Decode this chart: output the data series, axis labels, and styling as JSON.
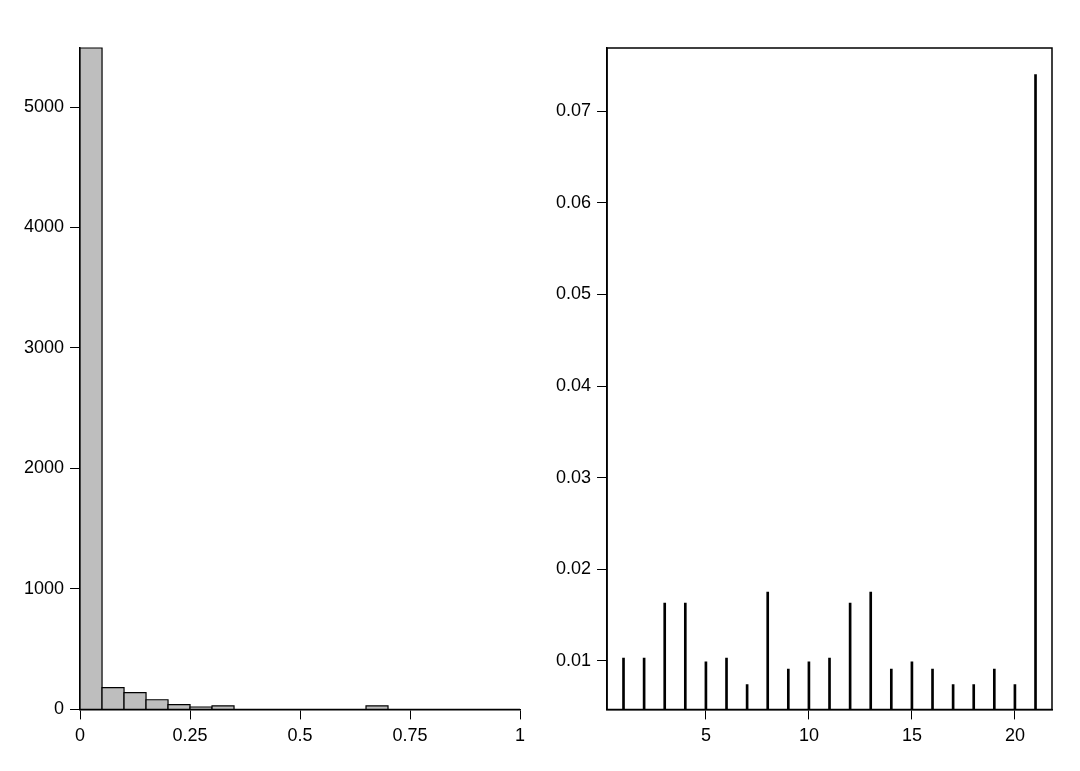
{
  "chart_data": [
    {
      "type": "histogram",
      "bins": [
        0,
        0.05,
        0.1,
        0.15,
        0.2,
        0.25,
        0.3,
        0.35,
        0.4,
        0.45,
        0.5,
        0.55,
        0.6,
        0.65,
        0.7,
        0.75,
        0.8,
        0.85,
        0.9,
        0.95,
        1
      ],
      "values": [
        5490,
        180,
        140,
        80,
        40,
        20,
        30,
        0,
        0,
        0,
        0,
        0,
        0,
        30,
        0,
        0,
        0,
        0,
        0,
        0
      ],
      "color": "#bebebe",
      "xlim": [
        0,
        1
      ],
      "xticks": [
        0,
        0.25,
        0.5,
        0.75,
        1
      ],
      "ylim": [
        0,
        5490
      ],
      "yticks": [
        0,
        1000,
        2000,
        3000,
        4000,
        5000
      ],
      "grid": false
    },
    {
      "type": "bar",
      "x": [
        1,
        2,
        3,
        4,
        5,
        6,
        7,
        8,
        9,
        10,
        11,
        12,
        13,
        14,
        15,
        16,
        17,
        18,
        19,
        20,
        21
      ],
      "values": [
        0.0103,
        0.0103,
        0.0163,
        0.0163,
        0.0099,
        0.0103,
        0.0074,
        0.0175,
        0.0091,
        0.0099,
        0.0103,
        0.0163,
        0.0175,
        0.0091,
        0.0099,
        0.0091,
        0.0074,
        0.0074,
        0.0091,
        0.0074,
        0.074
      ],
      "color": "#000000",
      "xlim": [
        0.2,
        21.8
      ],
      "xticks": [
        5,
        10,
        15,
        20
      ],
      "ylim": [
        0.0047,
        0.0769
      ],
      "yticks": [
        0.01,
        0.02,
        0.03,
        0.04,
        0.05,
        0.06,
        0.07
      ],
      "grid": false
    }
  ]
}
